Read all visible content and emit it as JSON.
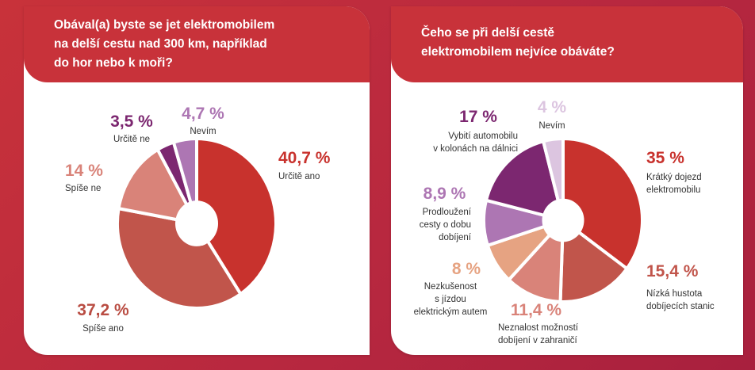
{
  "colors": {
    "background": "#c0293d",
    "panel_header": "#c8323a",
    "panel_body": "#ffffff"
  },
  "left_panel": {
    "title_lines": [
      "Obával(a) byste se jet elektromobilem",
      "na delší cestu nad 300 km, například",
      "do hor nebo k moři?"
    ]
  },
  "right_panel": {
    "title_lines": [
      "Čeho se při delší cestě",
      "elektromobilem nejvíce obáváte?"
    ]
  },
  "chart_data": [
    {
      "type": "pie",
      "donut": true,
      "title": "Obával(a) byste se jet elektromobilem na delší cestu nad 300 km, například do hor nebo k moři?",
      "slices": [
        {
          "label": "Určitě ano",
          "value": 40.7,
          "display": "40,7 %",
          "color": "#c8322d",
          "label_lines": [
            "Určitě ano"
          ]
        },
        {
          "label": "Spíše ano",
          "value": 37.2,
          "display": "37,2 %",
          "color": "#c1554b",
          "label_lines": [
            "Spíše ano"
          ]
        },
        {
          "label": "Spíše ne",
          "value": 14.0,
          "display": "14 %",
          "color": "#d98379",
          "label_lines": [
            "Spíše ne"
          ]
        },
        {
          "label": "Určitě ne",
          "value": 3.5,
          "display": "3,5 %",
          "color": "#7c2770",
          "label_lines": [
            "Určitě ne"
          ]
        },
        {
          "label": "Nevím",
          "value": 4.7,
          "display": "4,7 %",
          "color": "#ad76b3",
          "label_lines": [
            "Nevím"
          ]
        }
      ]
    },
    {
      "type": "pie",
      "donut": true,
      "title": "Čeho se při delší cestě elektromobilem nejvíce obáváte?",
      "slices": [
        {
          "label": "Krátký dojezd elektromobilu",
          "value": 35,
          "display": "35 %",
          "color": "#c8322d",
          "label_lines": [
            "Krátký dojezd",
            "elektromobilu"
          ]
        },
        {
          "label": "Nízká hustota dobíjecích stanic",
          "value": 15.4,
          "display": "15,4 %",
          "color": "#c1554b",
          "label_lines": [
            "Nízká hustota",
            "dobíjecích stanic"
          ]
        },
        {
          "label": "Neznalost možností dobíjení v zahraničí",
          "value": 11.4,
          "display": "11,4 %",
          "color": "#d98379",
          "label_lines": [
            "Neznalost možností",
            "dobíjení v zahraničí"
          ]
        },
        {
          "label": "Nezkušenost s jízdou elektrickým autem",
          "value": 8,
          "display": "8 %",
          "color": "#e6a382",
          "label_lines": [
            "Nezkušenost",
            "s jízdou",
            "elektrickým autem"
          ]
        },
        {
          "label": "Prodloužení cesty o dobu dobíjení",
          "value": 8.9,
          "display": "8,9 %",
          "color": "#ad76b3",
          "label_lines": [
            "Prodloužení",
            "cesty o dobu",
            "dobíjení"
          ]
        },
        {
          "label": "Vybití automobilu v kolonách na dálnici",
          "value": 17,
          "display": "17 %",
          "color": "#7c2770",
          "label_lines": [
            "Vybití automobilu",
            "v kolonách na dálnici"
          ]
        },
        {
          "label": "Nevím",
          "value": 4,
          "display": "4 %",
          "color": "#dcc5e0",
          "label_lines": [
            "Nevím"
          ]
        }
      ]
    }
  ]
}
